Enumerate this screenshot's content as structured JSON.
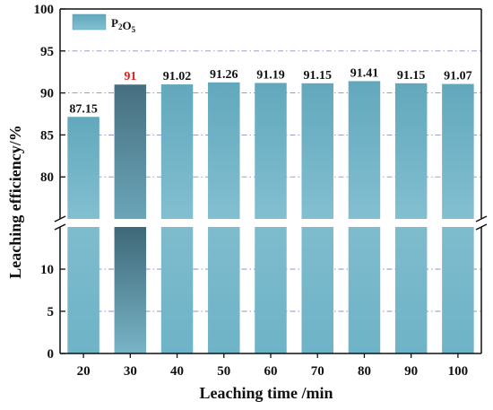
{
  "chart_data": {
    "type": "bar",
    "title": "",
    "xlabel": "Leaching time /min",
    "ylabel": "Leaching efficiency/%",
    "categories": [
      "20",
      "30",
      "40",
      "50",
      "60",
      "70",
      "80",
      "90",
      "100"
    ],
    "series": [
      {
        "name": "P2O5",
        "values": [
          87.15,
          91,
          91.02,
          91.26,
          91.19,
          91.15,
          91.41,
          91.15,
          91.07
        ],
        "labels": [
          "87.15",
          "91",
          "91.02",
          "91.26",
          "91.19",
          "91.15",
          "91.41",
          "91.15",
          "91.07"
        ]
      }
    ],
    "highlight_index": 1,
    "y_axis_break": true,
    "ylim_lower": [
      0,
      15
    ],
    "ylim_upper": [
      75,
      100
    ],
    "yticks_lower": [
      0,
      5,
      10
    ],
    "yticks_upper": [
      80,
      85,
      90,
      95,
      100
    ],
    "grid": "dash-dot horizontal",
    "legend_position": "top-left",
    "colors": {
      "bar": "#6fb0c4",
      "bar_highlight": "#4e7f90",
      "highlight_label": "#e0201a",
      "grid": "#8a8fd0"
    }
  }
}
